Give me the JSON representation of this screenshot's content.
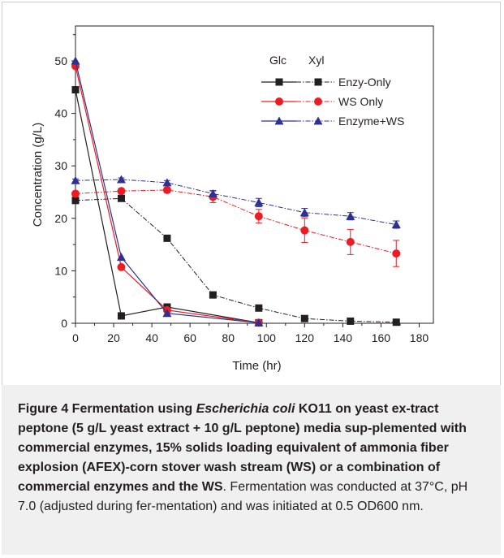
{
  "chart_data": {
    "type": "line",
    "xlabel": "Time (hr)",
    "ylabel": "Concentration (g/L)",
    "xlim": [
      0,
      190
    ],
    "ylim": [
      0,
      55
    ],
    "xticks": [
      0,
      20,
      40,
      60,
      80,
      100,
      120,
      140,
      160,
      180
    ],
    "yticks": [
      0,
      10,
      20,
      30,
      40,
      50
    ],
    "grid": false,
    "legend_position": "top-right",
    "legend_headers": [
      "Glc",
      "Xyl"
    ],
    "series": [
      {
        "name": "Enzy-Only",
        "sugar": "Glc",
        "marker": "square",
        "color": "#231f20",
        "line": "solid",
        "x": [
          0,
          24,
          48,
          96
        ],
        "y": [
          44.5,
          1.4,
          3.1,
          0.1
        ]
      },
      {
        "name": "Enzy-Only",
        "sugar": "Xyl",
        "marker": "square",
        "color": "#231f20",
        "line": "dashdot",
        "x": [
          0,
          24,
          48,
          72,
          96,
          120,
          144,
          168
        ],
        "y": [
          23.4,
          23.8,
          16.2,
          5.4,
          2.9,
          0.9,
          0.4,
          0.2
        ]
      },
      {
        "name": "WS Only",
        "sugar": "Glc",
        "marker": "circle",
        "color": "#ed1c24",
        "line": "solid",
        "x": [
          0,
          24,
          48,
          96
        ],
        "y": [
          49.0,
          10.7,
          2.5,
          0.1
        ]
      },
      {
        "name": "WS Only",
        "sugar": "Xyl",
        "marker": "circle",
        "color": "#ed1c24",
        "line": "dashdot",
        "x": [
          0,
          24,
          48,
          72,
          96,
          120,
          144,
          168
        ],
        "y": [
          24.7,
          25.2,
          25.4,
          24.1,
          20.4,
          17.7,
          15.5,
          13.3
        ],
        "err": [
          0.3,
          0.4,
          0.5,
          1.1,
          1.3,
          2.3,
          2.4,
          2.5
        ]
      },
      {
        "name": "Enzyme+WS",
        "sugar": "Glc",
        "marker": "triangle",
        "color": "#2e3192",
        "line": "solid",
        "x": [
          0,
          24,
          48,
          96
        ],
        "y": [
          50.0,
          12.6,
          1.9,
          0.1
        ]
      },
      {
        "name": "Enzyme+WS",
        "sugar": "Xyl",
        "marker": "triangle",
        "color": "#2e3192",
        "line": "dashdot",
        "x": [
          0,
          24,
          48,
          72,
          96,
          120,
          144,
          168
        ],
        "y": [
          27.2,
          27.4,
          26.8,
          24.7,
          23.0,
          21.1,
          20.4,
          18.8
        ],
        "err": [
          0.3,
          0.3,
          0.4,
          0.6,
          0.8,
          0.8,
          0.7,
          0.7
        ]
      }
    ],
    "legend_entries": [
      {
        "label": "Enzy-Only",
        "marker": "square",
        "color": "#231f20"
      },
      {
        "label": "WS Only",
        "marker": "circle",
        "color": "#ed1c24"
      },
      {
        "label": "Enzyme+WS",
        "marker": "triangle",
        "color": "#2e3192"
      }
    ]
  },
  "caption": {
    "figure_label": "Figure 4",
    "bold_1": " Fermentation using ",
    "organism": "Escherichia coli",
    "bold_2": " KO11 on yeast ex-tract peptone (5 g/L yeast extract + 10 g/L peptone) media sup-plemented with commercial enzymes, 15% solids loading equivalent of ammonia fiber explosion (AFEX)-corn stover wash stream (WS) or a combination of commercial enzymes and the WS",
    "rest": ". Fermentation was conducted at 37°C, pH 7.0 (adjusted during fer-mentation) and was initiated at 0.5 OD600 nm."
  }
}
